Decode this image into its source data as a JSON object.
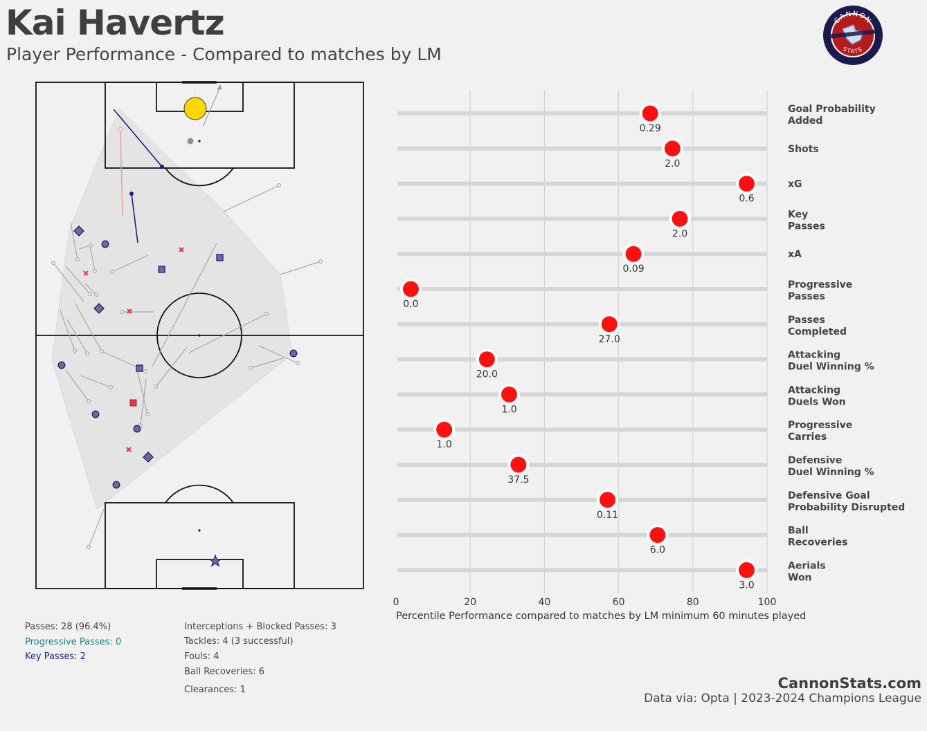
{
  "header": {
    "player_name": "Kai Havertz",
    "subtitle": "Player Performance - Compared to matches by LM"
  },
  "logo": {
    "top_text": "CANNON",
    "bottom_text": "STATS",
    "colors": {
      "ring": "#1a1a4e",
      "inner": "#b51b1b",
      "accent": "#6a8fd0"
    }
  },
  "colors": {
    "background": "#f1f1f1",
    "dot": "#ff1010",
    "track": "#d6d6d6",
    "shot": "#ffd600",
    "key_pass": "#1b1f7a",
    "progressive_pass": "#14877f",
    "defensive_marker": "#6b6e8e",
    "foul": "#e03a4a"
  },
  "pitch_stats": {
    "left": {
      "passes": "Passes: 28 (96.4%)",
      "progressive": "Progressive Passes: 0",
      "key": "Key Passes: 2"
    },
    "right": {
      "interceptions": "Interceptions + Blocked Passes: 3",
      "tackles": "Tackles: 4 (3 successful)",
      "fouls": "Fouls: 4",
      "recoveries": "Ball Recoveries: 6",
      "clearances": "Clearances: 1"
    }
  },
  "footer": {
    "site": "CannonStats.com",
    "credit": "Data via: Opta | 2023-2024 Champions League"
  },
  "chart_data": {
    "type": "lollipop",
    "xlabel": "Percentile Performance compared to matches by LM minimum 60 minutes played",
    "xlim": [
      0,
      100
    ],
    "xticks": [
      "0",
      "20",
      "40",
      "60",
      "80",
      "100"
    ],
    "grid": "vertical",
    "metrics": [
      {
        "label": [
          "Goal Probability",
          "Added"
        ],
        "percentile": 68.5,
        "value": "0.29"
      },
      {
        "label": [
          "Shots"
        ],
        "percentile": 74.5,
        "value": "2.0"
      },
      {
        "label": [
          "xG"
        ],
        "percentile": 94.5,
        "value": "0.6"
      },
      {
        "label": [
          "Key",
          "Passes"
        ],
        "percentile": 76.5,
        "value": "2.0"
      },
      {
        "label": [
          "xA"
        ],
        "percentile": 64.0,
        "value": "0.09"
      },
      {
        "label": [
          "Progressive",
          "Passes"
        ],
        "percentile": 4.0,
        "value": "0.0"
      },
      {
        "label": [
          "Passes",
          "Completed"
        ],
        "percentile": 57.5,
        "value": "27.0"
      },
      {
        "label": [
          "Attacking",
          "Duel Winning %"
        ],
        "percentile": 24.5,
        "value": "20.0"
      },
      {
        "label": [
          "Attacking",
          "Duels Won"
        ],
        "percentile": 30.5,
        "value": "1.0"
      },
      {
        "label": [
          "Progressive",
          "Carries"
        ],
        "percentile": 13.0,
        "value": "1.0"
      },
      {
        "label": [
          "Defensive",
          "Duel Winning %"
        ],
        "percentile": 33.0,
        "value": "37.5"
      },
      {
        "label": [
          "Defensive Goal",
          "Probability Disrupted"
        ],
        "percentile": 57.0,
        "value": "0.11"
      },
      {
        "label": [
          "Ball",
          "Recoveries"
        ],
        "percentile": 70.5,
        "value": "6.0"
      },
      {
        "label": [
          "Aerials",
          "Won"
        ],
        "percentile": 94.5,
        "value": "3.0"
      }
    ]
  }
}
